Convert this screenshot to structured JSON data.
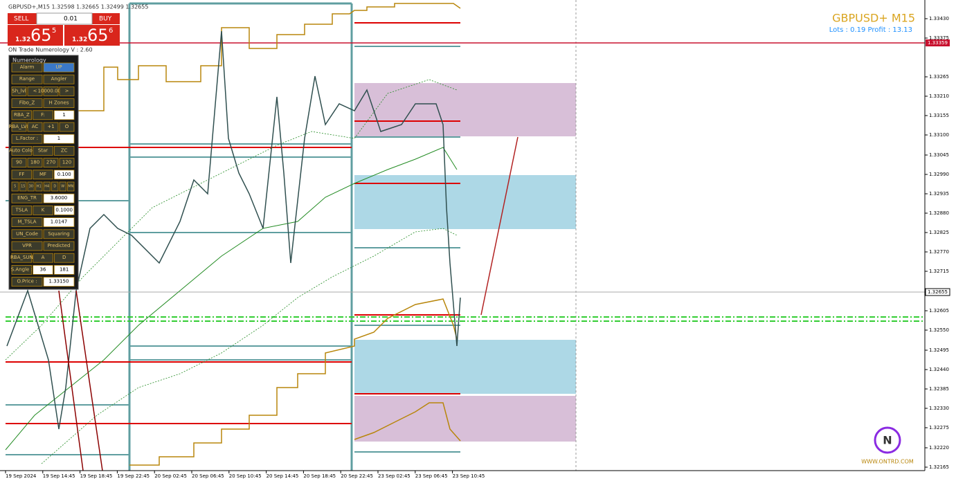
{
  "header": {
    "symbol_info": "GBPUSD+,M15  1.32598 1.32665 1.32499 1.32655"
  },
  "trade_panel": {
    "sell": "SELL",
    "buy": "BUY",
    "lot": "0.01",
    "sell_price": {
      "big": "1.32",
      "main": "65",
      "small": "5"
    },
    "buy_price": {
      "big": "1.32",
      "main": "65",
      "small": "6"
    }
  },
  "indicator_name": "ON Trade Numerology V : 2.60",
  "panel": {
    "title": "Numerology",
    "rows": [
      [
        "Alarm",
        "UP"
      ],
      [
        "Range",
        "Angler"
      ],
      [
        "Sh_lvl",
        "<",
        "10000.000",
        ">"
      ],
      [
        "Fibo_Z",
        "H Zones"
      ],
      [
        "RBA_Z",
        "F:",
        "1"
      ],
      [
        "RBA_LVL",
        "AC",
        "+1",
        "O"
      ],
      [
        "L.Factor :",
        "1"
      ],
      [
        "Auto Color",
        "Star",
        "ZC"
      ],
      [
        "90",
        "180",
        "270",
        "120"
      ],
      [
        "FF",
        "MF",
        "0.100"
      ],
      [
        "5",
        "15",
        "30",
        "H1",
        "H4",
        "D",
        "W",
        "MN"
      ],
      [
        "ENG_TR",
        "3.6000"
      ],
      [
        "TSLA",
        "K",
        "0.1000"
      ],
      [
        "M_TSLA",
        "1.0147"
      ],
      [
        "UN_Code",
        "Squaring"
      ],
      [
        "VPR",
        "Predicted"
      ],
      [
        "RBA_SUN",
        "A",
        "D"
      ],
      [
        "S.Angle :",
        "36",
        "181"
      ],
      [
        "O.Price :",
        "1.33150"
      ]
    ]
  },
  "info": {
    "title": "GBPUSD+ M15",
    "stats": "Lots : 0.19 Profit : 13.13",
    "website": "WWW.ONTRD.COM"
  },
  "price_axis": [
    "1.33430",
    "1.33375",
    "1.33265",
    "1.33210",
    "1.33155",
    "1.33100",
    "1.33045",
    "1.32990",
    "1.32935",
    "1.32880",
    "1.32825",
    "1.32770",
    "1.32715",
    "1.32605",
    "1.32550",
    "1.32495",
    "1.32440",
    "1.32385",
    "1.32330",
    "1.32275",
    "1.32220",
    "1.32165"
  ],
  "price_tags": {
    "level": "1.33359",
    "current": "1.32655"
  },
  "time_axis": [
    "19 Sep 2024",
    "19 Sep 14:45",
    "19 Sep 18:45",
    "19 Sep 22:45",
    "20 Sep 02:45",
    "20 Sep 06:45",
    "20 Sep 10:45",
    "20 Sep 14:45",
    "20 Sep 18:45",
    "20 Sep 22:45",
    "23 Sep 02:45",
    "23 Sep 06:45",
    "23 Sep 10:45"
  ]
}
